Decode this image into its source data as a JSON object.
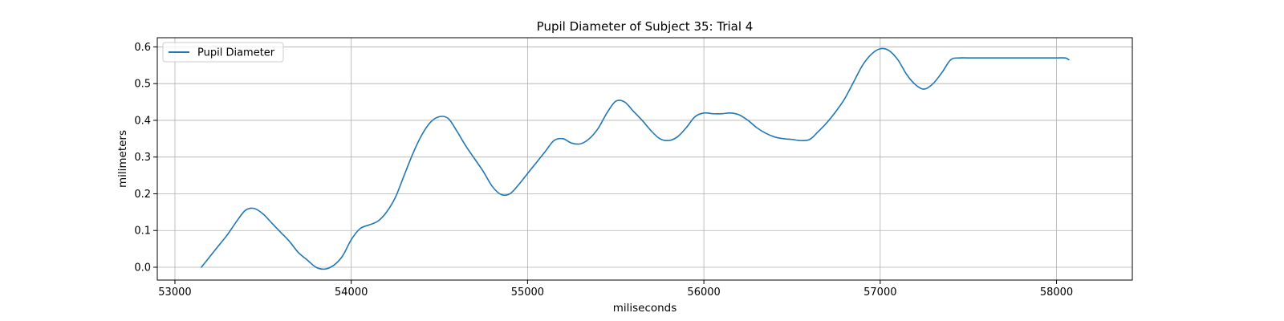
{
  "chart_data": {
    "type": "line",
    "title": "Pupil Diameter of Subject 35: Trial 4",
    "xlabel": "miliseconds",
    "ylabel": "milimeters",
    "xlim": [
      52900,
      58430
    ],
    "ylim": [
      -0.035,
      0.625
    ],
    "xticks": [
      53000,
      54000,
      55000,
      56000,
      57000,
      58000
    ],
    "yticks": [
      0.0,
      0.1,
      0.2,
      0.3,
      0.4,
      0.5,
      0.6
    ],
    "xtick_labels": [
      "53000",
      "54000",
      "55000",
      "56000",
      "57000",
      "58000"
    ],
    "ytick_labels": [
      "0.0",
      "0.1",
      "0.2",
      "0.3",
      "0.4",
      "0.5",
      "0.6"
    ],
    "grid": true,
    "legend_position": "top-left",
    "series": [
      {
        "name": "Pupil Diameter",
        "color": "#1f77b4",
        "x": [
          53150,
          53200,
          53250,
          53300,
          53350,
          53400,
          53450,
          53500,
          53550,
          53600,
          53650,
          53700,
          53750,
          53800,
          53850,
          53900,
          53950,
          54000,
          54050,
          54100,
          54150,
          54200,
          54250,
          54300,
          54350,
          54400,
          54450,
          54500,
          54550,
          54600,
          54650,
          54700,
          54750,
          54800,
          54850,
          54900,
          54950,
          55000,
          55050,
          55100,
          55150,
          55200,
          55250,
          55300,
          55350,
          55400,
          55450,
          55500,
          55550,
          55600,
          55650,
          55700,
          55750,
          55800,
          55850,
          55900,
          55950,
          56000,
          56050,
          56100,
          56150,
          56200,
          56250,
          56300,
          56350,
          56400,
          56450,
          56500,
          56550,
          56600,
          56650,
          56700,
          56750,
          56800,
          56850,
          56900,
          56950,
          57000,
          57050,
          57100,
          57150,
          57200,
          57250,
          57300,
          57350,
          57400,
          57450,
          57500,
          57550,
          57600,
          57650,
          57700,
          57750,
          57800,
          57850,
          57900,
          57950,
          58000,
          58050,
          58070
        ],
        "y": [
          0.0,
          0.03,
          0.06,
          0.09,
          0.125,
          0.155,
          0.16,
          0.145,
          0.12,
          0.095,
          0.07,
          0.04,
          0.02,
          0.0,
          -0.005,
          0.005,
          0.03,
          0.075,
          0.105,
          0.115,
          0.125,
          0.15,
          0.19,
          0.25,
          0.31,
          0.36,
          0.395,
          0.41,
          0.405,
          0.37,
          0.33,
          0.295,
          0.26,
          0.22,
          0.198,
          0.2,
          0.225,
          0.255,
          0.285,
          0.315,
          0.345,
          0.35,
          0.338,
          0.336,
          0.35,
          0.378,
          0.42,
          0.452,
          0.45,
          0.425,
          0.4,
          0.372,
          0.35,
          0.345,
          0.355,
          0.38,
          0.41,
          0.42,
          0.418,
          0.418,
          0.42,
          0.415,
          0.4,
          0.38,
          0.365,
          0.355,
          0.35,
          0.348,
          0.345,
          0.348,
          0.37,
          0.395,
          0.425,
          0.46,
          0.505,
          0.55,
          0.58,
          0.595,
          0.59,
          0.565,
          0.525,
          0.497,
          0.485,
          0.5,
          0.53,
          0.565,
          0.57,
          0.57,
          0.57,
          0.57,
          0.57,
          0.57,
          0.57,
          0.57,
          0.57,
          0.57,
          0.57,
          0.57,
          0.57,
          0.565
        ]
      }
    ]
  }
}
